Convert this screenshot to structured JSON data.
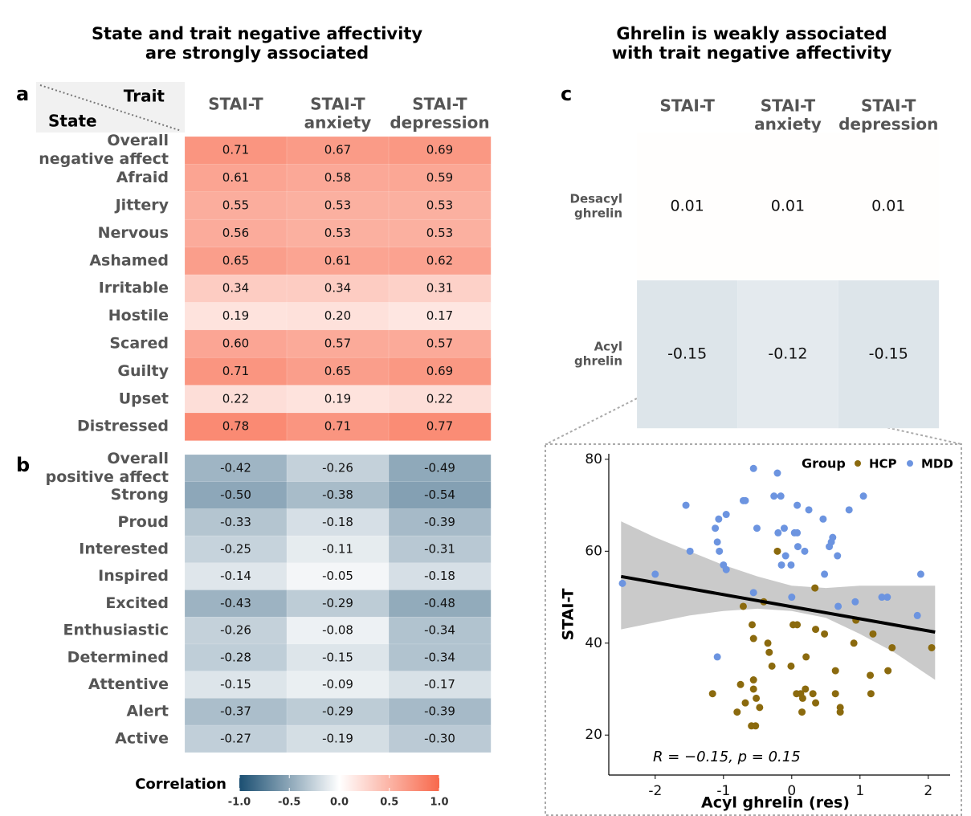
{
  "chart_data": [
    {
      "type": "heatmap",
      "panel": "a",
      "title": [
        "State and trait negative affectivity",
        "are strongly associated"
      ],
      "corner": {
        "column": "Trait",
        "row": "State"
      },
      "columns": [
        [
          "STAI-T"
        ],
        [
          "STAI-T",
          "anxiety"
        ],
        [
          "STAI-T",
          "depression"
        ]
      ],
      "rows": [
        [
          "Overall",
          "negative affect"
        ],
        [
          "Afraid"
        ],
        [
          "Jittery"
        ],
        [
          "Nervous"
        ],
        [
          "Ashamed"
        ],
        [
          "Irritable"
        ],
        [
          "Hostile"
        ],
        [
          "Scared"
        ],
        [
          "Guilty"
        ],
        [
          "Upset"
        ],
        [
          "Distressed"
        ]
      ],
      "values": [
        [
          0.71,
          0.67,
          0.69
        ],
        [
          0.61,
          0.58,
          0.59
        ],
        [
          0.55,
          0.53,
          0.53
        ],
        [
          0.56,
          0.53,
          0.53
        ],
        [
          0.65,
          0.61,
          0.62
        ],
        [
          0.34,
          0.34,
          0.31
        ],
        [
          0.19,
          0.2,
          0.17
        ],
        [
          0.6,
          0.57,
          0.57
        ],
        [
          0.71,
          0.65,
          0.69
        ],
        [
          0.22,
          0.19,
          0.22
        ],
        [
          0.78,
          0.71,
          0.77
        ]
      ],
      "value_labels": [
        [
          "0.71",
          "0.67",
          "0.69"
        ],
        [
          "0.61",
          "0.58",
          "0.59"
        ],
        [
          "0.55",
          "0.53",
          "0.53"
        ],
        [
          "0.56",
          "0.53",
          "0.53"
        ],
        [
          "0.65",
          "0.61",
          "0.62"
        ],
        [
          "0.34",
          "0.34",
          "0.31"
        ],
        [
          "0.19",
          "0.20",
          "0.17"
        ],
        [
          "0.60",
          "0.57",
          "0.57"
        ],
        [
          "0.71",
          "0.65",
          "0.69"
        ],
        [
          "0.22",
          "0.19",
          "0.22"
        ],
        [
          "0.78",
          "0.71",
          "0.77"
        ]
      ]
    },
    {
      "type": "heatmap",
      "panel": "b",
      "rows": [
        [
          "Overall",
          "positive affect"
        ],
        [
          "Strong"
        ],
        [
          "Proud"
        ],
        [
          "Interested"
        ],
        [
          "Inspired"
        ],
        [
          "Excited"
        ],
        [
          "Enthusiastic"
        ],
        [
          "Determined"
        ],
        [
          "Attentive"
        ],
        [
          "Alert"
        ],
        [
          "Active"
        ]
      ],
      "values": [
        [
          -0.42,
          -0.26,
          -0.49
        ],
        [
          -0.5,
          -0.38,
          -0.54
        ],
        [
          -0.33,
          -0.18,
          -0.39
        ],
        [
          -0.25,
          -0.11,
          -0.31
        ],
        [
          -0.14,
          -0.05,
          -0.18
        ],
        [
          -0.43,
          -0.29,
          -0.48
        ],
        [
          -0.26,
          -0.08,
          -0.34
        ],
        [
          -0.28,
          -0.15,
          -0.34
        ],
        [
          -0.15,
          -0.09,
          -0.17
        ],
        [
          -0.37,
          -0.29,
          -0.39
        ],
        [
          -0.27,
          -0.19,
          -0.3
        ]
      ],
      "value_labels": [
        [
          "-0.42",
          "-0.26",
          "-0.49"
        ],
        [
          "-0.50",
          "-0.38",
          "-0.54"
        ],
        [
          "-0.33",
          "-0.18",
          "-0.39"
        ],
        [
          "-0.25",
          "-0.11",
          "-0.31"
        ],
        [
          "-0.14",
          "-0.05",
          "-0.18"
        ],
        [
          "-0.43",
          "-0.29",
          "-0.48"
        ],
        [
          "-0.26",
          "-0.08",
          "-0.34"
        ],
        [
          "-0.28",
          "-0.15",
          "-0.34"
        ],
        [
          "-0.15",
          "-0.09",
          "-0.17"
        ],
        [
          "-0.37",
          "-0.29",
          "-0.39"
        ],
        [
          "-0.27",
          "-0.19",
          "-0.30"
        ]
      ]
    },
    {
      "type": "heatmap",
      "panel": "c",
      "title": [
        "Ghrelin is weakly associated",
        "with trait negative affectivity"
      ],
      "columns": [
        [
          "STAI-T"
        ],
        [
          "STAI-T",
          "anxiety"
        ],
        [
          "STAI-T",
          "depression"
        ]
      ],
      "rows": [
        [
          "Desacyl",
          "ghrelin"
        ],
        [
          "Acyl",
          "ghrelin"
        ]
      ],
      "values": [
        [
          0.01,
          0.01,
          0.01
        ],
        [
          -0.15,
          -0.12,
          -0.15
        ]
      ],
      "value_labels": [
        [
          "0.01",
          "0.01",
          "0.01"
        ],
        [
          "-0.15",
          "-0.12",
          "-0.15"
        ]
      ]
    },
    {
      "type": "scatter",
      "xlabel": "Acyl ghrelin (res)",
      "ylabel": "STAI-T",
      "xlim": [
        -2.68,
        2.32
      ],
      "ylim": [
        11.3,
        81.2
      ],
      "xticks": [
        -2,
        -1,
        0,
        1,
        2
      ],
      "yticks": [
        20,
        40,
        60,
        80
      ],
      "legend_title": "Group",
      "annotation": "R = −0.15, p = 0.15",
      "series": [
        {
          "name": "HCP",
          "color": "#8b6a0e",
          "x": [
            -1.16,
            -0.8,
            -0.75,
            -0.68,
            -0.59,
            -0.53,
            -0.52,
            -0.47,
            -0.56,
            -0.56,
            -0.71,
            -0.58,
            -0.56,
            -0.35,
            -0.33,
            -0.29,
            -0.21,
            -0.41,
            -0.01,
            0.02,
            0.08,
            0.07,
            0.13,
            0.16,
            0.15,
            0.21,
            0.2,
            0.31,
            0.34,
            0.35,
            0.35,
            0.48,
            0.64,
            0.64,
            0.71,
            0.71,
            0.94,
            0.91,
            1.19,
            1.16,
            1.15,
            1.41,
            1.47,
            2.05
          ],
          "values": [
            29,
            25,
            31,
            27,
            22,
            22,
            28,
            26,
            30,
            32,
            48,
            44,
            41,
            40,
            38,
            35,
            60,
            49,
            35,
            44,
            44,
            29,
            29,
            28,
            25,
            37,
            30,
            29,
            52,
            27,
            43,
            42,
            34,
            29,
            26,
            25,
            45,
            40,
            42,
            29,
            33,
            34,
            39,
            39
          ]
        },
        {
          "name": "MDD",
          "color": "#6c94e0",
          "x": [
            -2.48,
            -2.0,
            -1.55,
            -1.49,
            -1.12,
            -1.07,
            -1.09,
            -1.06,
            -0.96,
            -1.0,
            -0.96,
            -1.09,
            -0.71,
            -0.68,
            -0.56,
            -0.51,
            -0.56,
            -0.21,
            -0.26,
            -0.16,
            -0.2,
            -0.15,
            -0.11,
            -0.09,
            0.04,
            0.08,
            0.08,
            -0.01,
            0.0,
            0.09,
            0.19,
            0.25,
            0.46,
            0.48,
            0.55,
            0.58,
            0.6,
            0.67,
            0.68,
            0.84,
            0.93,
            1.05,
            1.32,
            1.4,
            1.84,
            1.89
          ],
          "values": [
            53,
            55,
            70,
            60,
            65,
            67,
            62,
            60,
            68,
            57,
            56,
            37,
            71,
            71,
            78,
            65,
            51,
            77,
            72,
            72,
            64,
            57,
            65,
            59,
            64,
            70,
            64,
            57,
            50,
            61,
            60,
            69,
            67,
            55,
            61,
            62,
            63,
            59,
            48,
            69,
            49,
            72,
            50,
            50,
            46,
            55
          ]
        }
      ],
      "fit": {
        "x": [
          -2.5,
          2.1
        ],
        "y": [
          54.5,
          42.4
        ]
      },
      "band": {
        "x": [
          -2.5,
          -2,
          -1.5,
          -1,
          -0.5,
          0,
          0.5,
          1,
          1.5,
          2.1
        ],
        "upper": [
          66.5,
          63,
          60,
          57,
          54.5,
          52.5,
          52,
          52.5,
          52.5,
          52.5
        ],
        "lower": [
          43,
          44.5,
          46,
          47,
          47.5,
          47,
          45.5,
          42,
          38,
          32
        ]
      }
    }
  ],
  "colorbar": {
    "label": "Correlation",
    "clim": [
      -1.0,
      1.0
    ],
    "colors": [
      "#1b4f72",
      "#ffffff",
      "#f8694c"
    ],
    "ticks": [
      {
        "value": -1.0,
        "label": "-1.0"
      },
      {
        "value": -0.5,
        "label": "-0.5"
      },
      {
        "value": 0.0,
        "label": "0.0"
      },
      {
        "value": 0.5,
        "label": "0.5"
      },
      {
        "value": 1.0,
        "label": "1.0"
      }
    ]
  }
}
